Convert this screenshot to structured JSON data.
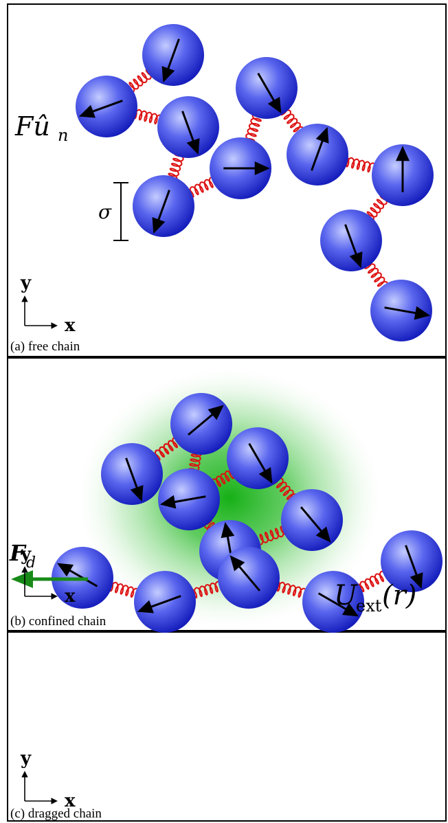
{
  "panels": [
    {
      "id": "a",
      "caption": "(a) free chain",
      "labels": {
        "force": "Fû",
        "force_sub": "n",
        "sigma": "σ"
      }
    },
    {
      "id": "b",
      "caption": "(b) confined chain",
      "labels": {
        "potential": "U",
        "potential_sub": "ext",
        "potential_arg": "(r)"
      }
    },
    {
      "id": "c",
      "caption": "(c) dragged chain",
      "labels": {
        "drag_force": "F",
        "drag_force_sub": "d"
      }
    }
  ],
  "axes": {
    "x": "x",
    "y": "y"
  },
  "colors": {
    "bead_light": "#9aa6ff",
    "bead_dark": "#1a22c8",
    "spring": "#dd1111",
    "arrow": "#000000",
    "drag_arrow": "#188a18",
    "confinement": "#22b022"
  }
}
